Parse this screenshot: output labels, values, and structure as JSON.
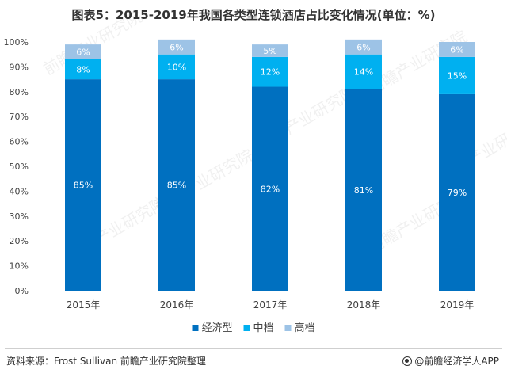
{
  "title": "图表5：2015-2019年我国各类型连锁酒店占比变化情况(单位：%)",
  "source": "资料来源：Frost Sullivan 前瞻产业研究院整理",
  "brand": "@前瞻经济学人APP",
  "watermark": "前瞻产业研究院",
  "colors": {
    "economy": "#0070c0",
    "mid": "#00b0f0",
    "high": "#9dc3e6"
  },
  "chart_data": {
    "type": "bar",
    "stacked": true,
    "categories": [
      "2015年",
      "2016年",
      "2017年",
      "2018年",
      "2019年"
    ],
    "series": [
      {
        "name": "经济型",
        "values": [
          85,
          85,
          82,
          81,
          79
        ],
        "labels": [
          "85%",
          "85%",
          "82%",
          "81%",
          "79%"
        ]
      },
      {
        "name": "中档",
        "values": [
          8,
          10,
          12,
          14,
          15
        ],
        "labels": [
          "8%",
          "10%",
          "12%",
          "14%",
          "15%"
        ]
      },
      {
        "name": "高档",
        "values": [
          6,
          6,
          5,
          6,
          6
        ],
        "labels": [
          "6%",
          "6%",
          "5%",
          "6%",
          "6%"
        ]
      }
    ],
    "ylim": [
      0,
      100
    ],
    "yticks": [
      "0%",
      "10%",
      "20%",
      "30%",
      "40%",
      "50%",
      "60%",
      "70%",
      "80%",
      "90%",
      "100%"
    ],
    "grid": false,
    "legend": "bottom"
  }
}
